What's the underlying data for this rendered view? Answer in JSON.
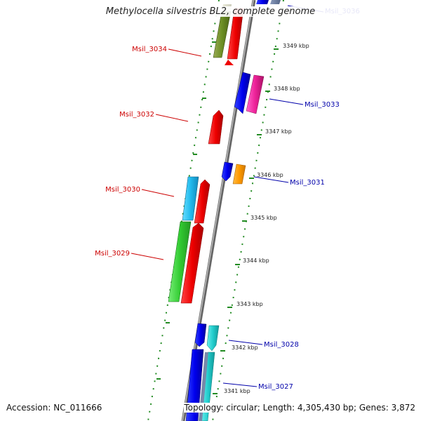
{
  "title": "Methylocella silvestris BL2, complete genome",
  "footer": {
    "accession": "Accession: NC_011666",
    "topology": "Topology: circular; Length: 4,305,430 bp; Genes: 3,872"
  },
  "colors": {
    "left_label": "#cc0000",
    "right_label": "#0000aa",
    "backbone": "#888888",
    "ruler": "#228b22"
  },
  "ruler_ticks": [
    {
      "label": "3349 kbp"
    },
    {
      "label": "3348 kbp"
    },
    {
      "label": "3347 kbp"
    },
    {
      "label": "3346 kbp"
    },
    {
      "label": "3345 kbp"
    },
    {
      "label": "3344 kbp"
    },
    {
      "label": "3343 kbp"
    },
    {
      "label": "3342 kbp"
    },
    {
      "label": "3341 kbp"
    }
  ],
  "gene_labels_left": [
    {
      "name": "Msil_3034"
    },
    {
      "name": "Msil_3032"
    },
    {
      "name": "Msil_3030"
    },
    {
      "name": "Msil_3029"
    }
  ],
  "gene_labels_right": [
    {
      "name": "Msil_3036"
    },
    {
      "name": "Msil_3033"
    },
    {
      "name": "Msil_3031"
    },
    {
      "name": "Msil_3028"
    },
    {
      "name": "Msil_3027"
    }
  ]
}
